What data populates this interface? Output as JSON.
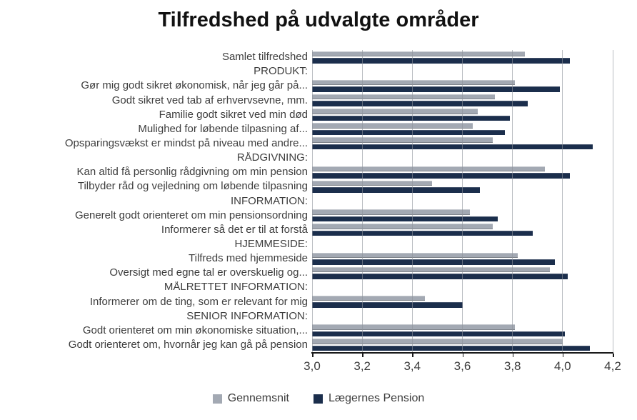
{
  "title": "Tilfredshed på udvalgte områder",
  "colors": {
    "gennemsnit": "#a3a9b3",
    "laegernes_pension": "#1b2e4c",
    "gridline": "#8e939b",
    "axis_line": "#1a1a1a",
    "text": "#3d3d3d"
  },
  "chart_data": {
    "type": "bar",
    "orientation": "horizontal",
    "title": "Tilfredshed på udvalgte områder",
    "xlabel": "",
    "ylabel": "",
    "xlim": [
      3.0,
      4.2
    ],
    "grid": true,
    "legend_position": "bottom",
    "x_tick_labels": [
      "3,0",
      "3,2",
      "3,4",
      "3,6",
      "3,8",
      "4,0",
      "4,2"
    ],
    "x_tick_values": [
      3.0,
      3.2,
      3.4,
      3.6,
      3.8,
      4.0,
      4.2
    ],
    "categories": [
      "Samlet tilfredshed",
      "PRODUKT:",
      "Gør mig godt sikret økonomisk, når jeg går på...",
      "Godt sikret ved tab af erhvervsevne, mm.",
      "Familie godt sikret ved min død",
      "Mulighed for løbende tilpasning af...",
      "Opsparingsvækst er mindst på niveau med andre...",
      "RÅDGIVNING:",
      "Kan altid få personlig rådgivning om min pension",
      "Tilbyder råd og vejledning om løbende tilpasning",
      "INFORMATION:",
      "Generelt godt orienteret om min pensionsordning",
      "Informerer så det er til at forstå",
      "HJEMMESIDE:",
      "Tilfreds med hjemmeside",
      "Oversigt med egne tal er overskuelig og...",
      "MÅLRETTET INFORMATION:",
      "Informerer om de ting, som er relevant for mig",
      "SENIOR INFORMATION:",
      "Godt orienteret om min økonomiske situation,...",
      "Godt orienteret om, hvornår jeg kan gå på pension"
    ],
    "series": [
      {
        "name": "Gennemsnit",
        "color": "#a3a9b3",
        "values": [
          3.85,
          null,
          3.81,
          3.73,
          3.66,
          3.64,
          3.72,
          null,
          3.93,
          3.48,
          null,
          3.63,
          3.72,
          null,
          3.82,
          3.95,
          null,
          3.45,
          null,
          3.81,
          4.0
        ]
      },
      {
        "name": "Lægernes Pension",
        "color": "#1b2e4c",
        "values": [
          4.03,
          null,
          3.99,
          3.86,
          3.79,
          3.77,
          4.12,
          null,
          4.03,
          3.67,
          null,
          3.74,
          3.88,
          null,
          3.97,
          4.02,
          null,
          3.6,
          null,
          4.01,
          4.11
        ]
      }
    ]
  }
}
